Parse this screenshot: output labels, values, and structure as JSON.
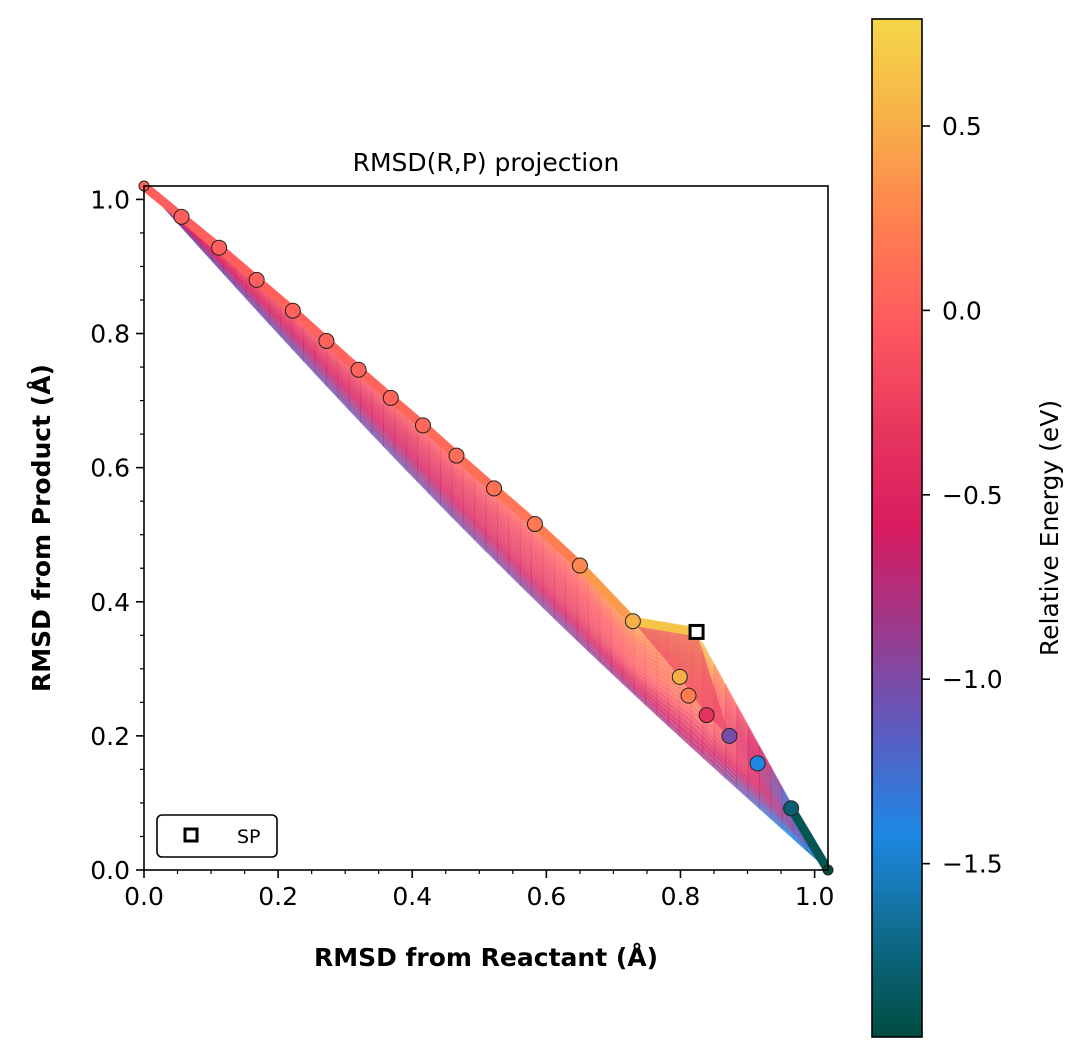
{
  "chart_data": {
    "type": "scatter",
    "title": "RMSD(R,P) projection",
    "xlabel": "RMSD from Reactant (Å)",
    "ylabel": "RMSD from Product (Å)",
    "xlim": [
      0.0,
      1.02
    ],
    "ylim": [
      0.0,
      1.02
    ],
    "xticks": [
      "0.0",
      "0.2",
      "0.4",
      "0.6",
      "0.8",
      "1.0"
    ],
    "yticks": [
      "0.0",
      "0.2",
      "0.4",
      "0.6",
      "0.8",
      "1.0"
    ],
    "grid": false,
    "legend": {
      "placement": "lower-left",
      "entries": [
        "SP"
      ]
    },
    "colorbar": {
      "label": "Relative Energy (eV)",
      "range": [
        -1.97,
        0.79
      ],
      "ticks": [
        "0.5",
        "0.0",
        "−0.5",
        "−1.0",
        "−1.5"
      ],
      "tick_values": [
        0.5,
        0.0,
        -0.5,
        -1.0,
        -1.5
      ],
      "colormap": [
        "#004d40",
        "#0f6b8c",
        "#1e88e5",
        "#5c5cc0",
        "#9b3a8c",
        "#d81b60",
        "#e8375e",
        "#ff5a5f",
        "#ff8050",
        "#f7b048",
        "#f5d749"
      ]
    },
    "path": {
      "x": [
        0.0,
        0.056,
        0.112,
        0.168,
        0.222,
        0.272,
        0.32,
        0.368,
        0.416,
        0.466,
        0.522,
        0.583,
        0.65,
        0.729,
        0.824
      ],
      "y": [
        1.02,
        0.974,
        0.928,
        0.88,
        0.834,
        0.789,
        0.746,
        0.704,
        0.663,
        0.618,
        0.569,
        0.516,
        0.454,
        0.371,
        0.355
      ],
      "energy": [
        0.0,
        0.0,
        0.0,
        0.0,
        0.02,
        0.03,
        0.03,
        0.04,
        0.06,
        0.09,
        0.13,
        0.18,
        0.27,
        0.52,
        0.79
      ]
    },
    "images": {
      "x": [
        0.0,
        0.056,
        0.112,
        0.168,
        0.222,
        0.272,
        0.32,
        0.368,
        0.416,
        0.466,
        0.522,
        0.583,
        0.65,
        0.729,
        0.799,
        0.812,
        0.839,
        0.873,
        0.915,
        0.965,
        1.02
      ],
      "y": [
        1.02,
        0.974,
        0.928,
        0.88,
        0.834,
        0.789,
        0.746,
        0.704,
        0.663,
        0.618,
        0.569,
        0.516,
        0.454,
        0.371,
        0.288,
        0.26,
        0.231,
        0.2,
        0.159,
        0.092,
        0.0
      ],
      "energy": [
        0.0,
        0.0,
        0.0,
        0.0,
        0.02,
        0.03,
        0.03,
        0.04,
        0.06,
        0.09,
        0.13,
        0.18,
        0.27,
        0.52,
        0.5,
        0.2,
        -0.35,
        -1.02,
        -1.42,
        -1.8,
        -1.97
      ]
    },
    "saddle_point": {
      "label": "SP",
      "x": 0.824,
      "y": 0.355,
      "energy": 0.79
    }
  }
}
